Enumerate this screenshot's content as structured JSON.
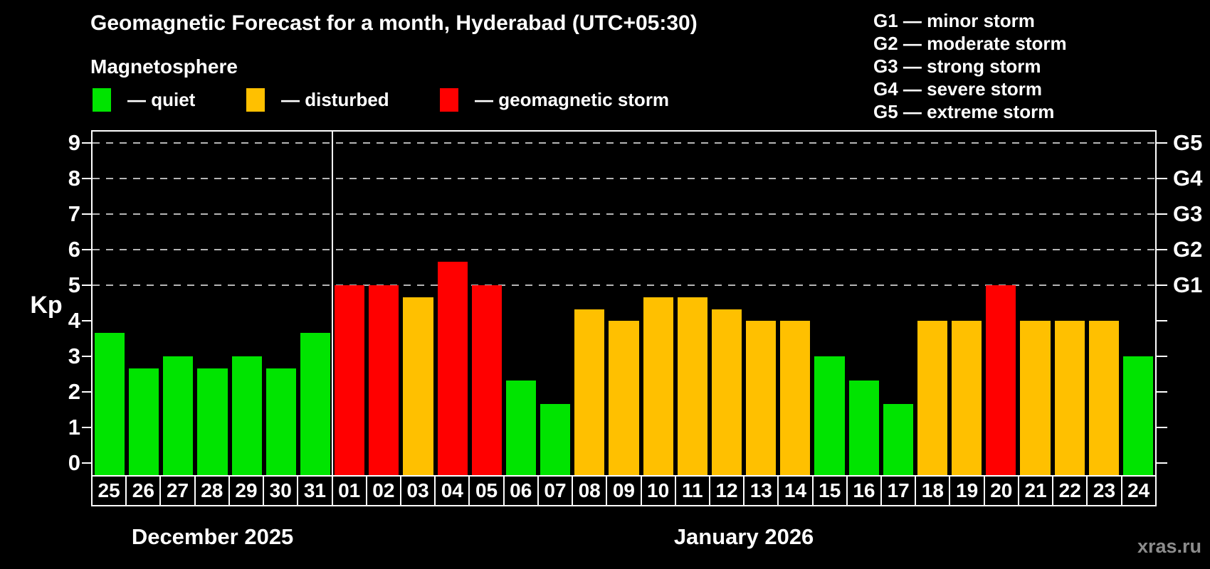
{
  "title": "Geomagnetic Forecast for a month, Hyderabad (UTC+05:30)",
  "subtitle": "Magnetosphere",
  "bar_legend": {
    "quiet": {
      "label": "— quiet",
      "color": "#00e400"
    },
    "disturbed": {
      "label": "— disturbed",
      "color": "#ffc000"
    },
    "storm": {
      "label": "— geomagnetic storm",
      "color": "#ff0000"
    }
  },
  "storm_scale_legend": [
    "G1 — minor storm",
    "G2 — moderate storm",
    "G3 — strong storm",
    "G4 — severe storm",
    "G5 — extreme storm"
  ],
  "watermark": "xras.ru",
  "chart_data": {
    "type": "bar",
    "title": "Geomagnetic Forecast for a month, Hyderabad (UTC+05:30)",
    "ylabel": "Kp",
    "ylim": [
      -0.34,
      9.32
    ],
    "grid": "dashed horizontal at Kp 5-9",
    "gridlines_at": [
      5,
      6,
      7,
      8,
      9
    ],
    "y_ticks": [
      0,
      1,
      2,
      3,
      4,
      5,
      6,
      7,
      8,
      9
    ],
    "right_axis": [
      {
        "kp": 5,
        "label": "G1"
      },
      {
        "kp": 6,
        "label": "G2"
      },
      {
        "kp": 7,
        "label": "G3"
      },
      {
        "kp": 8,
        "label": "G4"
      },
      {
        "kp": 9,
        "label": "G5"
      }
    ],
    "months": [
      {
        "label": "December 2025",
        "days": 7
      },
      {
        "label": "January 2026",
        "days": 24
      }
    ],
    "categories": [
      "25",
      "26",
      "27",
      "28",
      "29",
      "30",
      "31",
      "01",
      "02",
      "03",
      "04",
      "05",
      "06",
      "07",
      "08",
      "09",
      "10",
      "11",
      "12",
      "13",
      "14",
      "15",
      "16",
      "17",
      "18",
      "19",
      "20",
      "21",
      "22",
      "23",
      "24"
    ],
    "values": [
      3.67,
      2.67,
      3.0,
      2.67,
      3.0,
      2.67,
      3.67,
      5.0,
      5.0,
      4.67,
      5.67,
      5.0,
      2.33,
      1.67,
      4.33,
      4.0,
      4.67,
      4.67,
      4.33,
      4.0,
      4.0,
      3.0,
      2.33,
      1.67,
      4.0,
      4.0,
      5.0,
      4.0,
      4.0,
      4.0,
      3.0
    ],
    "statuses": [
      "quiet",
      "quiet",
      "quiet",
      "quiet",
      "quiet",
      "quiet",
      "quiet",
      "storm",
      "storm",
      "disturbed",
      "storm",
      "storm",
      "quiet",
      "quiet",
      "disturbed",
      "disturbed",
      "disturbed",
      "disturbed",
      "disturbed",
      "disturbed",
      "disturbed",
      "quiet",
      "quiet",
      "quiet",
      "disturbed",
      "disturbed",
      "storm",
      "disturbed",
      "disturbed",
      "disturbed",
      "quiet"
    ],
    "colors": {
      "quiet": "#00e400",
      "disturbed": "#ffc000",
      "storm": "#ff0000"
    }
  }
}
